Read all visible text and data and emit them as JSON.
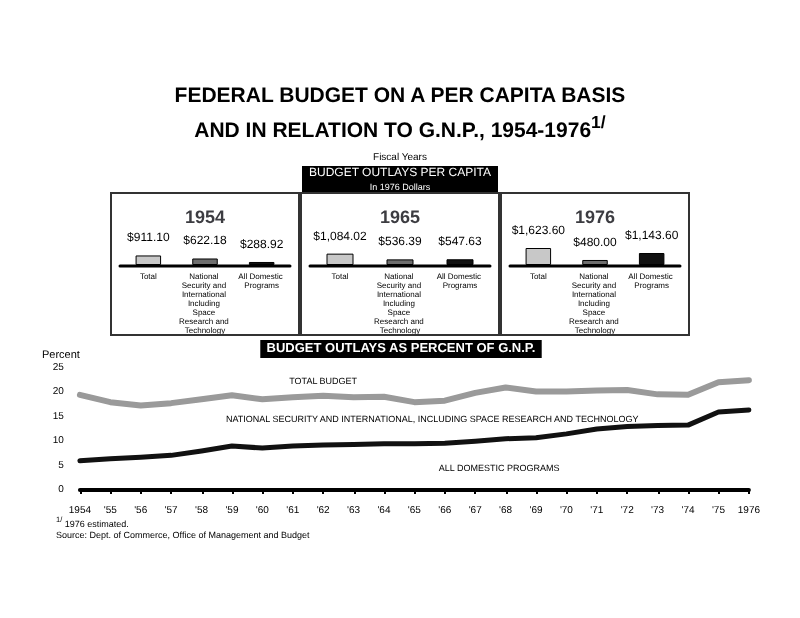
{
  "chart_data": [
    {
      "type": "other",
      "title": "FEDERAL BUDGET ON A PER CAPITA BASIS AND IN RELATION TO G.N.P., 1954-1976$^{1/}$",
      "subtitle": "Fiscal Years",
      "annotations": [
        "BUDGET OUTLAYS PER CAPITA",
        "In 1976 Dollars"
      ]
    },
    {
      "type": "bar",
      "title": "1954",
      "categories": [
        "Total",
        "National Security and International Including Space Research and Technology",
        "All Domestic Programs"
      ],
      "values": [
        911.1,
        622.18,
        288.92
      ],
      "colors": [
        "#c8c8c8",
        "#6e6e6e",
        "#111111"
      ],
      "value_labels": [
        "$911.10",
        "$622.18",
        "$288.92"
      ]
    },
    {
      "type": "bar",
      "title": "1965",
      "categories": [
        "Total",
        "National Security and International Including Space Research and Technology",
        "All Domestic Programs"
      ],
      "values": [
        1084.02,
        536.39,
        547.63
      ],
      "colors": [
        "#c8c8c8",
        "#6e6e6e",
        "#111111"
      ],
      "value_labels": [
        "$1,084.02",
        "$536.39",
        "$547.63"
      ]
    },
    {
      "type": "bar",
      "title": "1976",
      "categories": [
        "Total",
        "National Security and International Including Space Research and Technology",
        "All Domestic Programs"
      ],
      "values": [
        1623.6,
        480.0,
        1143.6
      ],
      "colors": [
        "#c8c8c8",
        "#6e6e6e",
        "#111111"
      ],
      "value_labels": [
        "$1,623.60",
        "$480.00",
        "$1,143.60"
      ]
    },
    {
      "type": "line",
      "title": "BUDGET OUTLAYS AS PERCENT OF G.N.P.",
      "ylabel": "Percent",
      "x": [
        1954,
        1955,
        1956,
        1957,
        1958,
        1959,
        1960,
        1961,
        1962,
        1963,
        1964,
        1965,
        1966,
        1967,
        1968,
        1969,
        1970,
        1971,
        1972,
        1973,
        1974,
        1975,
        1976
      ],
      "series": [
        {
          "name": "TOTAL BUDGET",
          "color": "#9a9a9a",
          "values": [
            19.5,
            18,
            17.3,
            17.8,
            18.6,
            19.4,
            18.6,
            19,
            19.3,
            19,
            19.1,
            18,
            18.3,
            19.9,
            21,
            20.2,
            20.2,
            20.4,
            20.5,
            19.6,
            19.5,
            22.1,
            22.5
          ]
        },
        {
          "name": "ALL DOMESTIC PROGRAMS",
          "color": "#111111",
          "values": [
            6,
            6.4,
            6.7,
            7.1,
            8,
            9,
            8.6,
            9,
            9.2,
            9.3,
            9.5,
            9.5,
            9.6,
            10,
            10.5,
            10.7,
            11.5,
            12.5,
            13,
            13.2,
            13.3,
            16,
            16.4
          ]
        }
      ],
      "xlim": [
        1954,
        1976
      ],
      "xticks": [
        1954,
        {
          "value": 1955,
          "label": "'55"
        },
        {
          "value": 1956,
          "label": "'56"
        },
        {
          "value": 1957,
          "label": "'57"
        },
        {
          "value": 1958,
          "label": "'58"
        },
        {
          "value": 1959,
          "label": "'59"
        },
        {
          "value": 1960,
          "label": "'60"
        },
        {
          "value": 1961,
          "label": "'61"
        },
        {
          "value": 1962,
          "label": "'62"
        },
        {
          "value": 1963,
          "label": "'63"
        },
        {
          "value": 1964,
          "label": "'64"
        },
        {
          "value": 1965,
          "label": "'65"
        },
        {
          "value": 1966,
          "label": "'66"
        },
        {
          "value": 1967,
          "label": "'67"
        },
        {
          "value": 1968,
          "label": "'68"
        },
        {
          "value": 1969,
          "label": "'69"
        },
        {
          "value": 1970,
          "label": "'70"
        },
        {
          "value": 1971,
          "label": "'71"
        },
        {
          "value": 1972,
          "label": "'72"
        },
        {
          "value": 1973,
          "label": "'73"
        },
        {
          "value": 1974,
          "label": "'74"
        },
        {
          "value": 1975,
          "label": "'75"
        },
        1976
      ],
      "ylim": [
        0,
        25
      ],
      "yticks": [
        0,
        5,
        10,
        15,
        20,
        25
      ],
      "annotations": [
        "NATIONAL SECURITY AND INTERNATIONAL, INCLUDING SPACE RESEARCH AND TECHNOLOGY",
        "$^{1/}$ 1976 estimated.",
        "Source: Dept. of Commerce, Office of Management and Budget"
      ]
    }
  ]
}
